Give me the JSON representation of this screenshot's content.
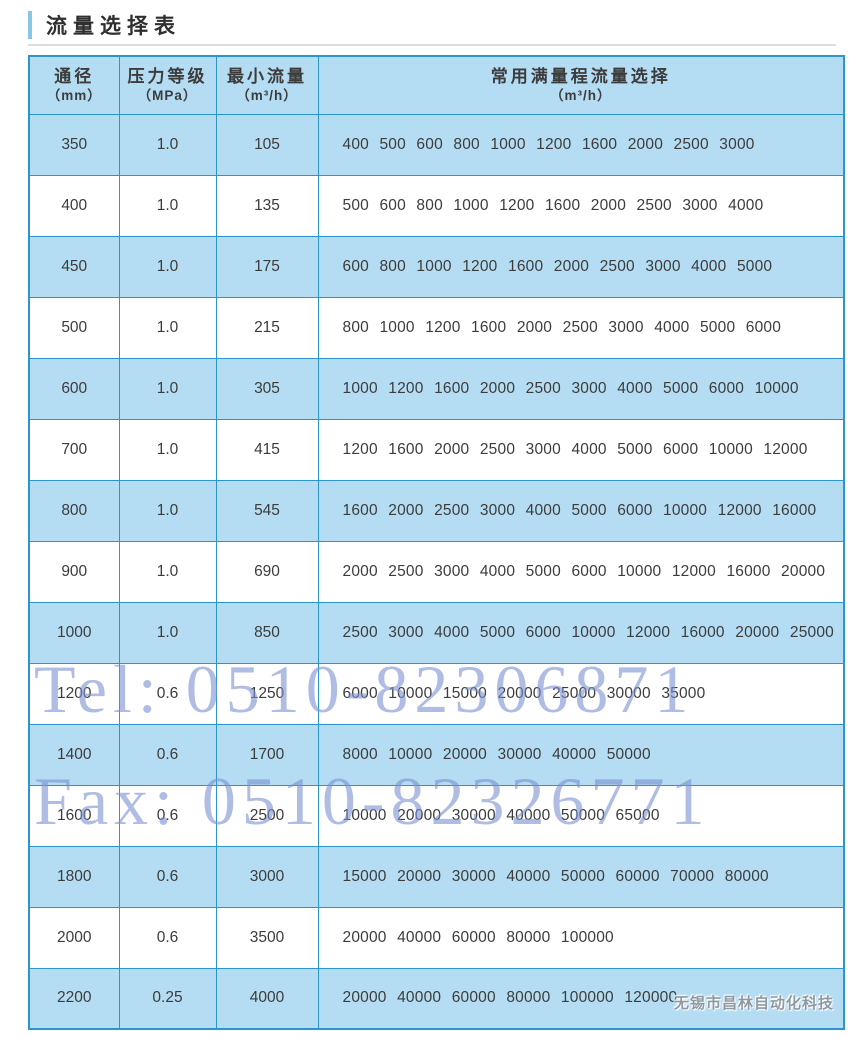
{
  "title": "流量选择表",
  "table": {
    "headers": [
      {
        "label": "通径",
        "unit": "（mm）"
      },
      {
        "label": "压力等级",
        "unit": "（MPa）"
      },
      {
        "label": "最小流量",
        "unit": "（m³/h）"
      },
      {
        "label": "常用满量程流量选择",
        "unit": "（m³/h）"
      }
    ],
    "rows": [
      {
        "diameter": "350",
        "pressure": "1.0",
        "min_flow": "105",
        "full_scale_flows": [
          "400",
          "500",
          "600",
          "800",
          "1000",
          "1200",
          "1600",
          "2000",
          "2500",
          "3000"
        ]
      },
      {
        "diameter": "400",
        "pressure": "1.0",
        "min_flow": "135",
        "full_scale_flows": [
          "500",
          "600",
          "800",
          "1000",
          "1200",
          "1600",
          "2000",
          "2500",
          "3000",
          "4000"
        ]
      },
      {
        "diameter": "450",
        "pressure": "1.0",
        "min_flow": "175",
        "full_scale_flows": [
          "600",
          "800",
          "1000",
          "1200",
          "1600",
          "2000",
          "2500",
          "3000",
          "4000",
          "5000"
        ]
      },
      {
        "diameter": "500",
        "pressure": "1.0",
        "min_flow": "215",
        "full_scale_flows": [
          "800",
          "1000",
          "1200",
          "1600",
          "2000",
          "2500",
          "3000",
          "4000",
          "5000",
          "6000"
        ]
      },
      {
        "diameter": "600",
        "pressure": "1.0",
        "min_flow": "305",
        "full_scale_flows": [
          "1000",
          "1200",
          "1600",
          "2000",
          "2500",
          "3000",
          "4000",
          "5000",
          "6000",
          "10000"
        ]
      },
      {
        "diameter": "700",
        "pressure": "1.0",
        "min_flow": "415",
        "full_scale_flows": [
          "1200",
          "1600",
          "2000",
          "2500",
          "3000",
          "4000",
          "5000",
          "6000",
          "10000",
          "12000"
        ]
      },
      {
        "diameter": "800",
        "pressure": "1.0",
        "min_flow": "545",
        "full_scale_flows": [
          "1600",
          "2000",
          "2500",
          "3000",
          "4000",
          "5000",
          "6000",
          "10000",
          "12000",
          "16000"
        ]
      },
      {
        "diameter": "900",
        "pressure": "1.0",
        "min_flow": "690",
        "full_scale_flows": [
          "2000",
          "2500",
          "3000",
          "4000",
          "5000",
          "6000",
          "10000",
          "12000",
          "16000",
          "20000"
        ]
      },
      {
        "diameter": "1000",
        "pressure": "1.0",
        "min_flow": "850",
        "full_scale_flows": [
          "2500",
          "3000",
          "4000",
          "5000",
          "6000",
          "10000",
          "12000",
          "16000",
          "20000",
          "25000"
        ]
      },
      {
        "diameter": "1200",
        "pressure": "0.6",
        "min_flow": "1250",
        "full_scale_flows": [
          "6000",
          "10000",
          "15000",
          "20000",
          "25000",
          "30000",
          "35000"
        ]
      },
      {
        "diameter": "1400",
        "pressure": "0.6",
        "min_flow": "1700",
        "full_scale_flows": [
          "8000",
          "10000",
          "20000",
          "30000",
          "40000",
          "50000"
        ]
      },
      {
        "diameter": "1600",
        "pressure": "0.6",
        "min_flow": "2500",
        "full_scale_flows": [
          "10000",
          "20000",
          "30000",
          "40000",
          "50000",
          "65000"
        ]
      },
      {
        "diameter": "1800",
        "pressure": "0.6",
        "min_flow": "3000",
        "full_scale_flows": [
          "15000",
          "20000",
          "30000",
          "40000",
          "50000",
          "60000",
          "70000",
          "80000"
        ]
      },
      {
        "diameter": "2000",
        "pressure": "0.6",
        "min_flow": "3500",
        "full_scale_flows": [
          "20000",
          "40000",
          "60000",
          "80000",
          "100000"
        ]
      },
      {
        "diameter": "2200",
        "pressure": "0.25",
        "min_flow": "4000",
        "full_scale_flows": [
          "20000",
          "40000",
          "60000",
          "80000",
          "100000",
          "120000"
        ]
      }
    ]
  },
  "watermark": {
    "tel": "Tel: 0510-82306871",
    "fax": "Fax: 0510-82326771",
    "company": "无锡市昌林自动化科技"
  },
  "colors": {
    "row_blue": "#b4dcf2",
    "table_border": "#2b96cc",
    "accent_bar": "#88c6e6",
    "watermark_blue": "#7a8fd0",
    "text": "#3c3c3c"
  }
}
